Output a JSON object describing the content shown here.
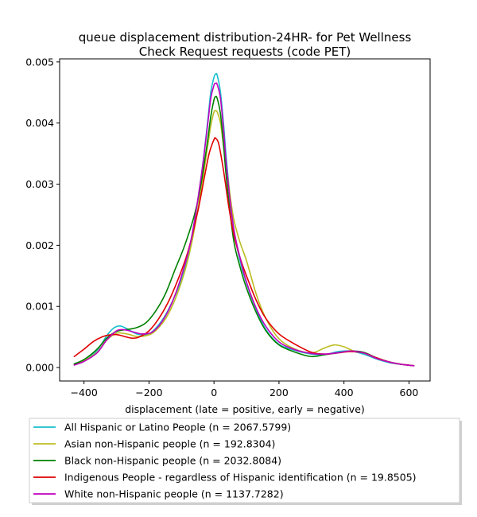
{
  "chart_data": {
    "type": "line",
    "title": "queue displacement distribution-24HR-  for Pet Wellness Check Request  requests (code PET)",
    "title_lines": [
      "queue displacement distribution-24HR-  for Pet Wellness",
      "Check Request  requests (code PET)"
    ],
    "xlabel": "displacement (late = positive, early = negative)",
    "ylabel": "",
    "xlim": [
      -475,
      665
    ],
    "ylim": [
      -0.00022,
      0.00505
    ],
    "xticks": [
      -400,
      -200,
      0,
      200,
      400,
      600
    ],
    "yticks": [
      0.0,
      0.001,
      0.002,
      0.003,
      0.004,
      0.005
    ],
    "xtick_labels": [
      "−400",
      "−200",
      "0",
      "200",
      "400",
      "600"
    ],
    "ytick_labels": [
      "0.000",
      "0.001",
      "0.002",
      "0.003",
      "0.004",
      "0.005"
    ],
    "grid": false,
    "legend_position": "below-axes",
    "series": [
      {
        "name": "All Hispanic or Latino People (n = 2067.5799)",
        "color": "#17becf",
        "x": [
          -430,
          -400,
          -360,
          -330,
          -310,
          -290,
          -270,
          -250,
          -230,
          -200,
          -170,
          -140,
          -100,
          -70,
          -40,
          -20,
          -10,
          0,
          5,
          10,
          20,
          30,
          40,
          60,
          80,
          100,
          130,
          160,
          200,
          250,
          300,
          340,
          380,
          420,
          460,
          500,
          540,
          580,
          615
        ],
        "y": [
          6e-05,
          0.00012,
          0.00028,
          0.00052,
          0.00064,
          0.00068,
          0.00064,
          0.00058,
          0.00054,
          0.00055,
          0.0007,
          0.00095,
          0.00145,
          0.0021,
          0.0031,
          0.004,
          0.0045,
          0.00475,
          0.0048,
          0.00478,
          0.0045,
          0.00395,
          0.0033,
          0.0023,
          0.00175,
          0.00138,
          0.00095,
          0.00062,
          0.00038,
          0.00028,
          0.00022,
          0.00021,
          0.00026,
          0.00027,
          0.00022,
          0.00014,
          8e-05,
          5e-05,
          3e-05
        ]
      },
      {
        "name": "Asian non-Hispanic people (n = 192.8304)",
        "color": "#bcbd22",
        "x": [
          -430,
          -400,
          -360,
          -330,
          -300,
          -280,
          -260,
          -240,
          -210,
          -180,
          -140,
          -100,
          -70,
          -40,
          -20,
          -10,
          0,
          5,
          10,
          20,
          30,
          45,
          60,
          80,
          100,
          130,
          160,
          200,
          250,
          300,
          340,
          370,
          400,
          430,
          460,
          500,
          540,
          580,
          615
        ],
        "y": [
          5e-05,
          0.00011,
          0.00025,
          0.00045,
          0.00056,
          0.00056,
          0.00054,
          0.00051,
          0.00052,
          0.0006,
          0.00088,
          0.0014,
          0.002,
          0.0029,
          0.0036,
          0.00395,
          0.00418,
          0.0042,
          0.00418,
          0.004,
          0.0036,
          0.003,
          0.00245,
          0.00205,
          0.00175,
          0.0012,
          0.0008,
          0.00047,
          0.0003,
          0.00024,
          0.00032,
          0.00037,
          0.00034,
          0.00027,
          0.00024,
          0.00015,
          9e-05,
          5e-05,
          3e-05
        ]
      },
      {
        "name": "Black non-Hispanic people (n = 2032.8084)",
        "color": "#008000",
        "x": [
          -430,
          -400,
          -360,
          -330,
          -300,
          -270,
          -240,
          -210,
          -180,
          -150,
          -120,
          -90,
          -60,
          -40,
          -20,
          -10,
          0,
          5,
          10,
          20,
          30,
          40,
          60,
          80,
          100,
          130,
          160,
          200,
          250,
          300,
          340,
          380,
          420,
          460,
          500,
          540,
          580,
          615
        ],
        "y": [
          6e-05,
          0.00013,
          0.0003,
          0.00048,
          0.00059,
          0.00062,
          0.00065,
          0.00073,
          0.00092,
          0.0012,
          0.0016,
          0.002,
          0.0025,
          0.003,
          0.0037,
          0.0041,
          0.00438,
          0.00443,
          0.0044,
          0.00415,
          0.0036,
          0.003,
          0.0021,
          0.00165,
          0.0013,
          0.0009,
          0.0006,
          0.00037,
          0.00025,
          0.00018,
          0.00021,
          0.00024,
          0.00027,
          0.00025,
          0.00016,
          9e-05,
          5e-05,
          3e-05
        ]
      },
      {
        "name": "Indigenous People - regardless of Hispanic identification (n = 19.8505)",
        "color": "#e00000",
        "x": [
          -430,
          -400,
          -370,
          -340,
          -310,
          -290,
          -270,
          -250,
          -230,
          -200,
          -170,
          -140,
          -110,
          -80,
          -50,
          -30,
          -15,
          0,
          5,
          15,
          30,
          45,
          60,
          80,
          100,
          130,
          160,
          200,
          250,
          300,
          340,
          380,
          420,
          460,
          500,
          540,
          580,
          615
        ],
        "y": [
          0.00018,
          0.0003,
          0.00043,
          0.00051,
          0.00054,
          0.00053,
          0.0005,
          0.00048,
          0.0005,
          0.0006,
          0.0008,
          0.00108,
          0.00145,
          0.0019,
          0.00255,
          0.0031,
          0.0035,
          0.00373,
          0.00375,
          0.00365,
          0.0032,
          0.00265,
          0.0022,
          0.0018,
          0.0015,
          0.0011,
          0.0008,
          0.00055,
          0.00038,
          0.00025,
          0.00022,
          0.00024,
          0.00026,
          0.00024,
          0.00016,
          9e-05,
          5e-05,
          3e-05
        ]
      },
      {
        "name": "White non-Hispanic people (n = 1137.7282)",
        "color": "#bf00bf",
        "x": [
          -430,
          -400,
          -360,
          -330,
          -300,
          -280,
          -260,
          -240,
          -220,
          -190,
          -160,
          -130,
          -100,
          -70,
          -40,
          -20,
          -10,
          0,
          5,
          10,
          20,
          30,
          40,
          60,
          80,
          100,
          130,
          160,
          200,
          250,
          300,
          340,
          380,
          420,
          460,
          500,
          540,
          580,
          615
        ],
        "y": [
          4e-05,
          0.0001,
          0.00024,
          0.00045,
          0.0006,
          0.00062,
          0.0006,
          0.00057,
          0.00055,
          0.00058,
          0.00075,
          0.00105,
          0.0015,
          0.0021,
          0.0031,
          0.00395,
          0.0044,
          0.00462,
          0.00465,
          0.00463,
          0.0044,
          0.00385,
          0.0032,
          0.0023,
          0.0018,
          0.0014,
          0.00097,
          0.00067,
          0.00042,
          0.00029,
          0.00023,
          0.00022,
          0.00024,
          0.00027,
          0.00024,
          0.00015,
          9e-05,
          5e-05,
          3e-05
        ]
      }
    ]
  }
}
